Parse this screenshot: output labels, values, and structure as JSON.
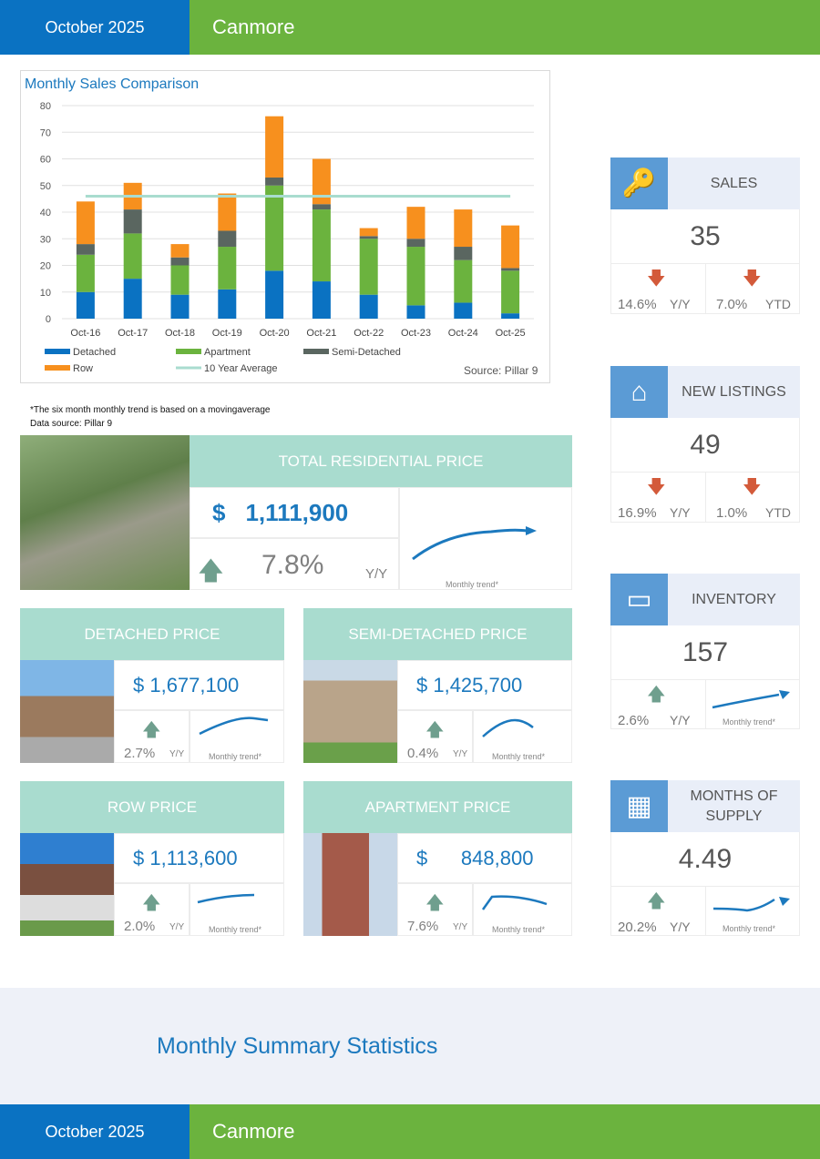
{
  "header": {
    "date": "October 2025",
    "location": "Canmore"
  },
  "footer": {
    "date": "October 2025",
    "location": "Canmore"
  },
  "summary_title": "Monthly Summary Statistics",
  "notes": {
    "trend_note": "*The six month monthly trend is based on a movingaverage",
    "data_source": "Data source: Pillar 9"
  },
  "chart_data": {
    "type": "bar",
    "stacked": true,
    "title": "Monthly Sales Comparison",
    "source": "Source: Pillar 9",
    "categories": [
      "Oct-16",
      "Oct-17",
      "Oct-18",
      "Oct-19",
      "Oct-20",
      "Oct-21",
      "Oct-22",
      "Oct-23",
      "Oct-24",
      "Oct-25"
    ],
    "ylim": [
      0,
      80
    ],
    "yticks": [
      "0",
      "10",
      "20",
      "30",
      "40",
      "50",
      "60",
      "70",
      "80"
    ],
    "grid": true,
    "legend_position": "bottom",
    "series": [
      {
        "name": "Detached",
        "color": "#0a72c2",
        "values": [
          10,
          15,
          9,
          11,
          18,
          14,
          9,
          5,
          6,
          2
        ]
      },
      {
        "name": "Apartment",
        "color": "#6bb33e",
        "values": [
          14,
          17,
          11,
          16,
          32,
          27,
          21,
          22,
          16,
          16
        ]
      },
      {
        "name": "Semi-Detached",
        "color": "#5a6660",
        "values": [
          4,
          9,
          3,
          6,
          3,
          2,
          1,
          3,
          5,
          1
        ]
      },
      {
        "name": "Row",
        "color": "#f7901e",
        "values": [
          16,
          10,
          5,
          14,
          23,
          17,
          3,
          12,
          14,
          16
        ]
      }
    ],
    "reference_line": {
      "name": "10 Year Average",
      "color": "#a9dccf",
      "value": 46
    }
  },
  "total": {
    "title": "TOTAL RESIDENTIAL PRICE",
    "currency": "$",
    "price": "1,111,900",
    "change": "7.8%",
    "period": "Y/Y",
    "trend_label": "Monthly trend*",
    "direction": "up"
  },
  "types": [
    {
      "title": "DETACHED PRICE",
      "price": "$ 1,677,100",
      "change": "2.7%",
      "period": "Y/Y",
      "trend_label": "Monthly trend*",
      "direction": "up"
    },
    {
      "title": "SEMI-DETACHED PRICE",
      "price": "$ 1,425,700",
      "change": "0.4%",
      "period": "Y/Y",
      "trend_label": "Monthly trend*",
      "direction": "up"
    },
    {
      "title": "ROW PRICE",
      "price": "$ 1,113,600",
      "change": "2.0%",
      "period": "Y/Y",
      "trend_label": "Monthly trend*",
      "direction": "up"
    },
    {
      "title": "APARTMENT PRICE",
      "price": "$      848,800",
      "change": "7.6%",
      "period": "Y/Y",
      "trend_label": "Monthly trend*",
      "direction": "up"
    }
  ],
  "stats": [
    {
      "title": "SALES",
      "icon": "keys-icon",
      "value": "35",
      "left_change": "14.6%",
      "left_period": "Y/Y",
      "left_direction": "down",
      "right_change": "7.0%",
      "right_period": "YTD",
      "right_direction": "down"
    },
    {
      "title": "NEW LISTINGS",
      "icon": "house-icon",
      "value": "49",
      "left_change": "16.9%",
      "left_period": "Y/Y",
      "left_direction": "down",
      "right_change": "1.0%",
      "right_period": "YTD",
      "right_direction": "down"
    },
    {
      "title": "INVENTORY",
      "icon": "for-sale-sign-icon",
      "value": "157",
      "left_change": "2.6%",
      "left_period": "Y/Y",
      "left_direction": "up",
      "trend_label": "Monthly trend*"
    },
    {
      "title": "MONTHS OF SUPPLY",
      "icon": "calendar-icon",
      "value": "4.49",
      "left_change": "20.2%",
      "left_period": "Y/Y",
      "left_direction": "up",
      "trend_label": "Monthly trend*"
    }
  ],
  "colors": {
    "blue": "#0a72c2",
    "green": "#6bb33e",
    "teal": "#a9dccf",
    "up_arrow": "#6f9f8e",
    "down_arrow": "#d35a3a"
  }
}
